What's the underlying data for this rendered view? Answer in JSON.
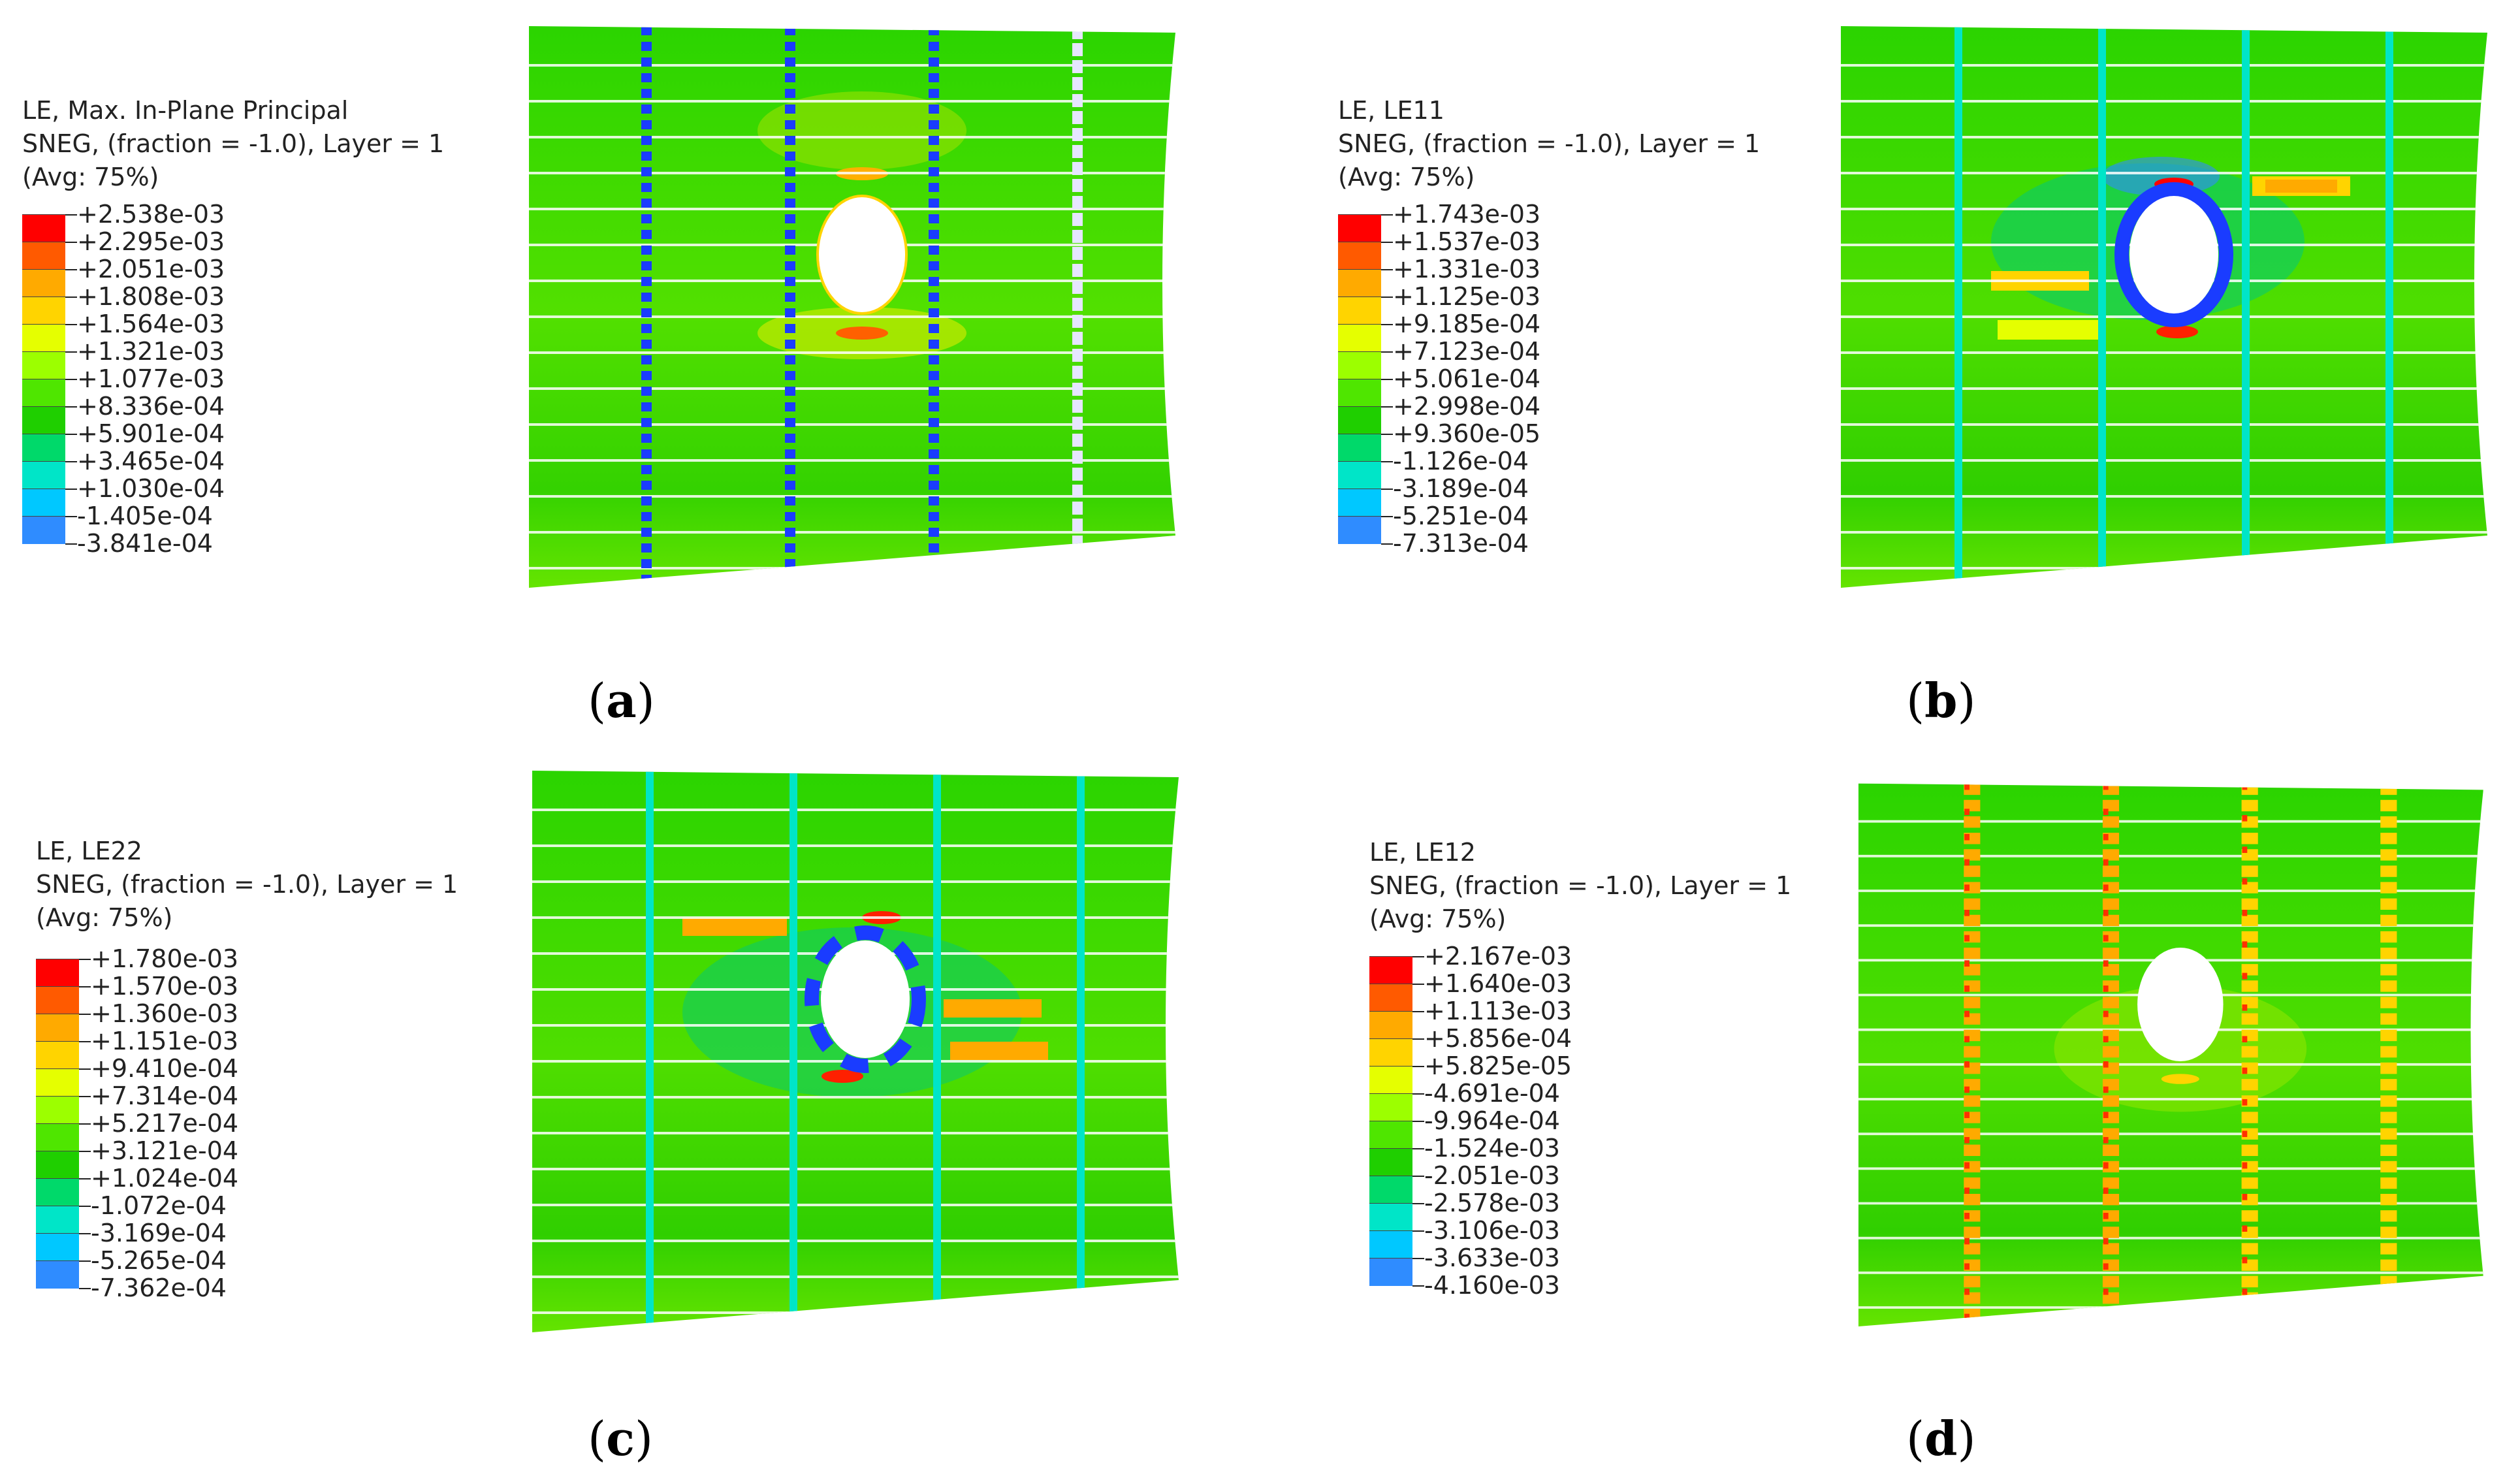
{
  "colors": [
    "#ff0000",
    "#ff5a00",
    "#ffaa00",
    "#ffd400",
    "#e5ff00",
    "#9cff00",
    "#4fe600",
    "#1fcf00",
    "#00d96a",
    "#00e5c8",
    "#00c8ff",
    "#2f8cff",
    "#1a3cff",
    "#0000d8"
  ],
  "panels": [
    {
      "caption": "a",
      "title_line1": "LE, Max. In-Plane Principal",
      "title_line2": "SNEG, (fraction = -1.0), Layer = 1",
      "title_line3": "(Avg: 75%)",
      "values": [
        "+2.538e-03",
        "+2.295e-03",
        "+2.051e-03",
        "+1.808e-03",
        "+1.564e-03",
        "+1.321e-03",
        "+1.077e-03",
        "+8.336e-04",
        "+5.901e-04",
        "+3.465e-04",
        "+1.030e-04",
        "-1.405e-04",
        "-3.841e-04"
      ]
    },
    {
      "caption": "b",
      "title_line1": "LE, LE11",
      "title_line2": "SNEG, (fraction = -1.0), Layer = 1",
      "title_line3": "(Avg: 75%)",
      "values": [
        "+1.743e-03",
        "+1.537e-03",
        "+1.331e-03",
        "+1.125e-03",
        "+9.185e-04",
        "+7.123e-04",
        "+5.061e-04",
        "+2.998e-04",
        "+9.360e-05",
        "-1.126e-04",
        "-3.189e-04",
        "-5.251e-04",
        "-7.313e-04"
      ]
    },
    {
      "caption": "c",
      "title_line1": "LE, LE22",
      "title_line2": "SNEG, (fraction = -1.0), Layer = 1",
      "title_line3": "(Avg: 75%)",
      "values": [
        "+1.780e-03",
        "+1.570e-03",
        "+1.360e-03",
        "+1.151e-03",
        "+9.410e-04",
        "+7.314e-04",
        "+5.217e-04",
        "+3.121e-04",
        "+1.024e-04",
        "-1.072e-04",
        "-3.169e-04",
        "-5.265e-04",
        "-7.362e-04"
      ]
    },
    {
      "caption": "d",
      "title_line1": "LE, LE12",
      "title_line2": "SNEG, (fraction = -1.0), Layer = 1",
      "title_line3": "(Avg: 75%)",
      "values": [
        "+2.167e-03",
        "+1.640e-03",
        "+1.113e-03",
        "+5.856e-04",
        "+5.825e-05",
        "-4.691e-04",
        "-9.964e-04",
        "-1.524e-03",
        "-2.051e-03",
        "-2.578e-03",
        "-3.106e-03",
        "-3.633e-03",
        "-4.160e-03"
      ]
    }
  ]
}
